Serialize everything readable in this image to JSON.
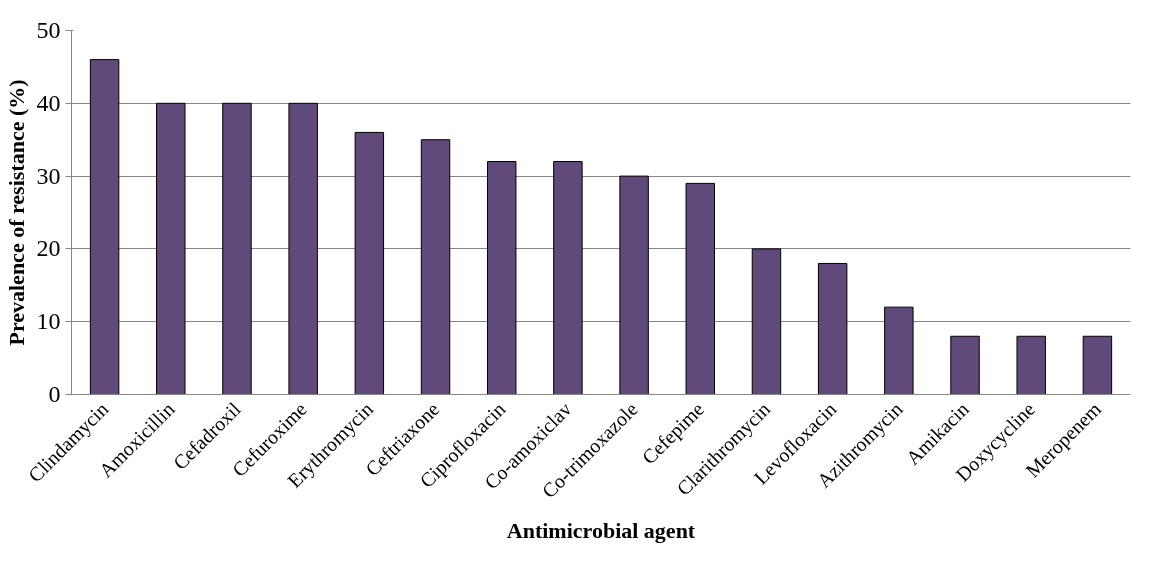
{
  "chart_data": {
    "type": "bar",
    "xlabel": "Antimicrobial agent",
    "ylabel": "Prevalence of resistance (%)",
    "categories": [
      "Clindamycin",
      "Amoxicillin",
      "Cefadroxil",
      "Cefuroxime",
      "Erythromycin",
      "Ceftriaxone",
      "Ciprofloxacin",
      "Co-amoxiclav",
      "Co-trimoxazole",
      "Cefepime",
      "Clarithromycin",
      "Levofloxacin",
      "Azithromycin",
      "Amikacin",
      "Doxycycline",
      "Meropenem"
    ],
    "values": [
      46,
      40,
      40,
      40,
      36,
      35,
      32,
      32,
      30,
      29,
      20,
      18,
      12,
      8,
      8,
      8
    ],
    "color": "#604a7b",
    "ylim": [
      0,
      50
    ],
    "yticks": [
      0,
      10,
      20,
      30,
      40,
      50
    ],
    "grid": "y"
  }
}
